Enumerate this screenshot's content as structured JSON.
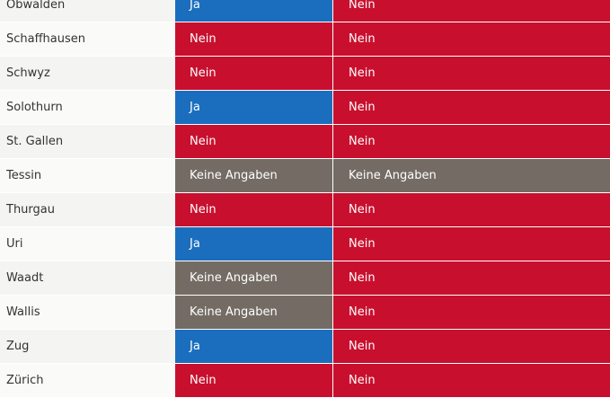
{
  "colors": {
    "Ja": "#1b6ebd",
    "Nein": "#c8102e",
    "Keine Angaben": "#746c64"
  },
  "rows": [
    {
      "canton": "Obwalden",
      "col1": "Ja",
      "col2": "Nein"
    },
    {
      "canton": "Schaffhausen",
      "col1": "Nein",
      "col2": "Nein"
    },
    {
      "canton": "Schwyz",
      "col1": "Nein",
      "col2": "Nein"
    },
    {
      "canton": "Solothurn",
      "col1": "Ja",
      "col2": "Nein"
    },
    {
      "canton": "St. Gallen",
      "col1": "Nein",
      "col2": "Nein"
    },
    {
      "canton": "Tessin",
      "col1": "Keine Angaben",
      "col2": "Keine Angaben"
    },
    {
      "canton": "Thurgau",
      "col1": "Nein",
      "col2": "Nein"
    },
    {
      "canton": "Uri",
      "col1": "Ja",
      "col2": "Nein"
    },
    {
      "canton": "Waadt",
      "col1": "Keine Angaben",
      "col2": "Nein"
    },
    {
      "canton": "Wallis",
      "col1": "Keine Angaben",
      "col2": "Nein"
    },
    {
      "canton": "Zug",
      "col1": "Ja",
      "col2": "Nein"
    },
    {
      "canton": "Zürich",
      "col1": "Nein",
      "col2": "Nein"
    }
  ]
}
